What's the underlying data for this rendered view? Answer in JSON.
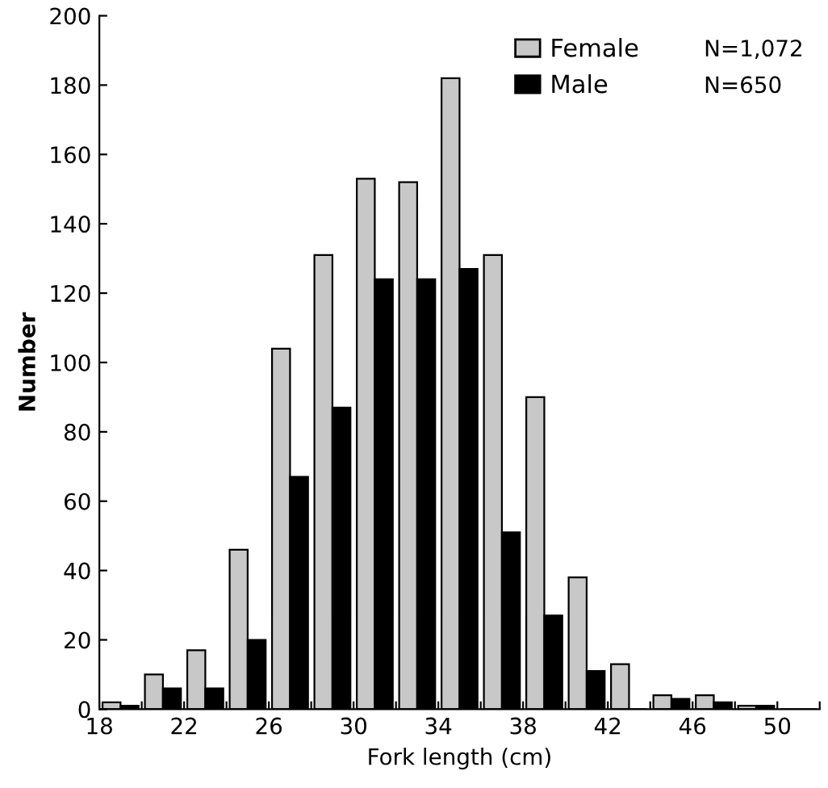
{
  "chart_data": {
    "type": "bar",
    "xlabel": "Fork length (cm)",
    "ylabel": "Number",
    "x": [
      19,
      21,
      23,
      25,
      27,
      29,
      31,
      33,
      35,
      37,
      39,
      41,
      43,
      45,
      47,
      49,
      51
    ],
    "series": [
      {
        "name": "Female",
        "color": "#c8c8c8",
        "values": [
          2,
          10,
          17,
          46,
          104,
          131,
          153,
          152,
          182,
          131,
          90,
          38,
          13,
          4,
          4,
          1,
          0
        ]
      },
      {
        "name": "Male",
        "color": "#000000",
        "values": [
          1,
          6,
          6,
          20,
          67,
          87,
          124,
          124,
          127,
          51,
          27,
          11,
          0,
          3,
          2,
          1,
          0
        ]
      }
    ],
    "annotations": [
      "N=1,072",
      "N=650"
    ],
    "xlim": [
      18,
      52
    ],
    "ylim": [
      0,
      200
    ],
    "xticks": [
      18,
      {
        "value": 20,
        "label": null
      },
      22,
      {
        "value": 24,
        "label": null
      },
      26,
      {
        "value": 28,
        "label": null
      },
      30,
      {
        "value": 32,
        "label": null
      },
      34,
      {
        "value": 36,
        "label": null
      },
      38,
      {
        "value": 40,
        "label": null
      },
      42,
      {
        "value": 44,
        "label": null
      },
      46,
      {
        "value": 48,
        "label": null
      },
      50,
      {
        "value": 52,
        "label": null
      }
    ],
    "yticks": [
      0,
      20,
      40,
      60,
      80,
      100,
      120,
      140,
      160,
      180,
      200
    ],
    "legend": "top right",
    "grid": false
  }
}
